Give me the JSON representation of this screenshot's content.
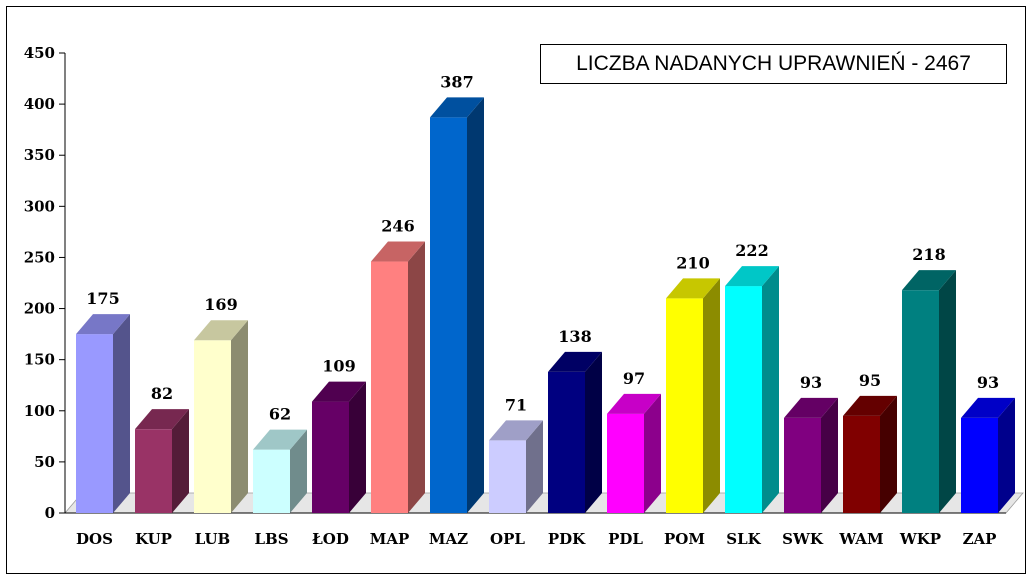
{
  "chart_data": {
    "type": "bar",
    "title": "LICZBA NADANYCH UPRAWNIEŃ - 2467",
    "categories": [
      "DOS",
      "KUP",
      "LUB",
      "LBS",
      "ŁOD",
      "MAP",
      "MAZ",
      "OPL",
      "PDK",
      "PDL",
      "POM",
      "SLK",
      "SWK",
      "WAM",
      "WKP",
      "ZAP"
    ],
    "values": [
      175,
      82,
      169,
      62,
      109,
      246,
      387,
      71,
      138,
      97,
      210,
      222,
      93,
      95,
      218,
      93
    ],
    "colors": [
      "#9999ff",
      "#993366",
      "#ffffcc",
      "#ccffff",
      "#660066",
      "#ff8080",
      "#0066cc",
      "#ccccff",
      "#000080",
      "#ff00ff",
      "#ffff00",
      "#00ffff",
      "#800080",
      "#800000",
      "#008080",
      "#0000ff"
    ],
    "ylim": [
      0,
      450
    ],
    "yticks": [
      0,
      50,
      100,
      150,
      200,
      250,
      300,
      350,
      400,
      450
    ],
    "grid": false,
    "legend": "none",
    "style": "3d-bar"
  }
}
